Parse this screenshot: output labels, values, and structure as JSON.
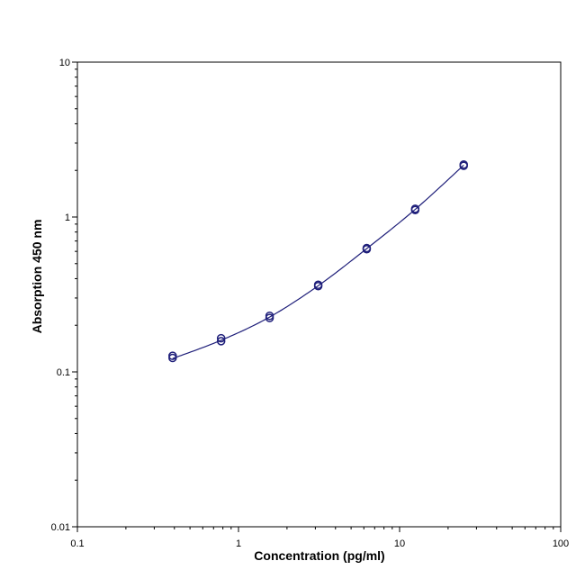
{
  "chart_data": {
    "type": "scatter",
    "xlabel": "Concentration (pg/ml)",
    "ylabel": "Absorption 450 nm",
    "x_scale": "log",
    "y_scale": "log",
    "xlim": [
      0.1,
      100
    ],
    "ylim": [
      0.01,
      10
    ],
    "x_ticks": [
      {
        "value": 0.1,
        "label": "0.1"
      },
      {
        "value": 1,
        "label": "1"
      },
      {
        "value": 10,
        "label": "10"
      },
      {
        "value": 100,
        "label": "100"
      }
    ],
    "y_ticks": [
      {
        "value": 0.01,
        "label": "0.01"
      },
      {
        "value": 0.1,
        "label": "0.1"
      },
      {
        "value": 1,
        "label": "1"
      },
      {
        "value": 10,
        "label": "10"
      }
    ],
    "grid": false,
    "series": [
      {
        "marker": "open-circle",
        "color": "#1f1f7a",
        "points": [
          {
            "x": 0.39,
            "y": 0.127
          },
          {
            "x": 0.39,
            "y": 0.123
          },
          {
            "x": 0.78,
            "y": 0.165
          },
          {
            "x": 0.78,
            "y": 0.158
          },
          {
            "x": 1.56,
            "y": 0.23
          },
          {
            "x": 1.56,
            "y": 0.223
          },
          {
            "x": 3.125,
            "y": 0.365
          },
          {
            "x": 3.125,
            "y": 0.358
          },
          {
            "x": 6.25,
            "y": 0.63
          },
          {
            "x": 6.25,
            "y": 0.62
          },
          {
            "x": 12.5,
            "y": 1.13
          },
          {
            "x": 12.5,
            "y": 1.11
          },
          {
            "x": 25,
            "y": 2.18
          },
          {
            "x": 25,
            "y": 2.14
          }
        ]
      }
    ],
    "fit_curve": {
      "color": "#1f1f7a",
      "points": [
        {
          "x": 0.39,
          "y": 0.122
        },
        {
          "x": 0.78,
          "y": 0.16
        },
        {
          "x": 1.56,
          "y": 0.226
        },
        {
          "x": 3.125,
          "y": 0.36
        },
        {
          "x": 6.25,
          "y": 0.625
        },
        {
          "x": 12.5,
          "y": 1.12
        },
        {
          "x": 25,
          "y": 2.16
        }
      ]
    }
  }
}
